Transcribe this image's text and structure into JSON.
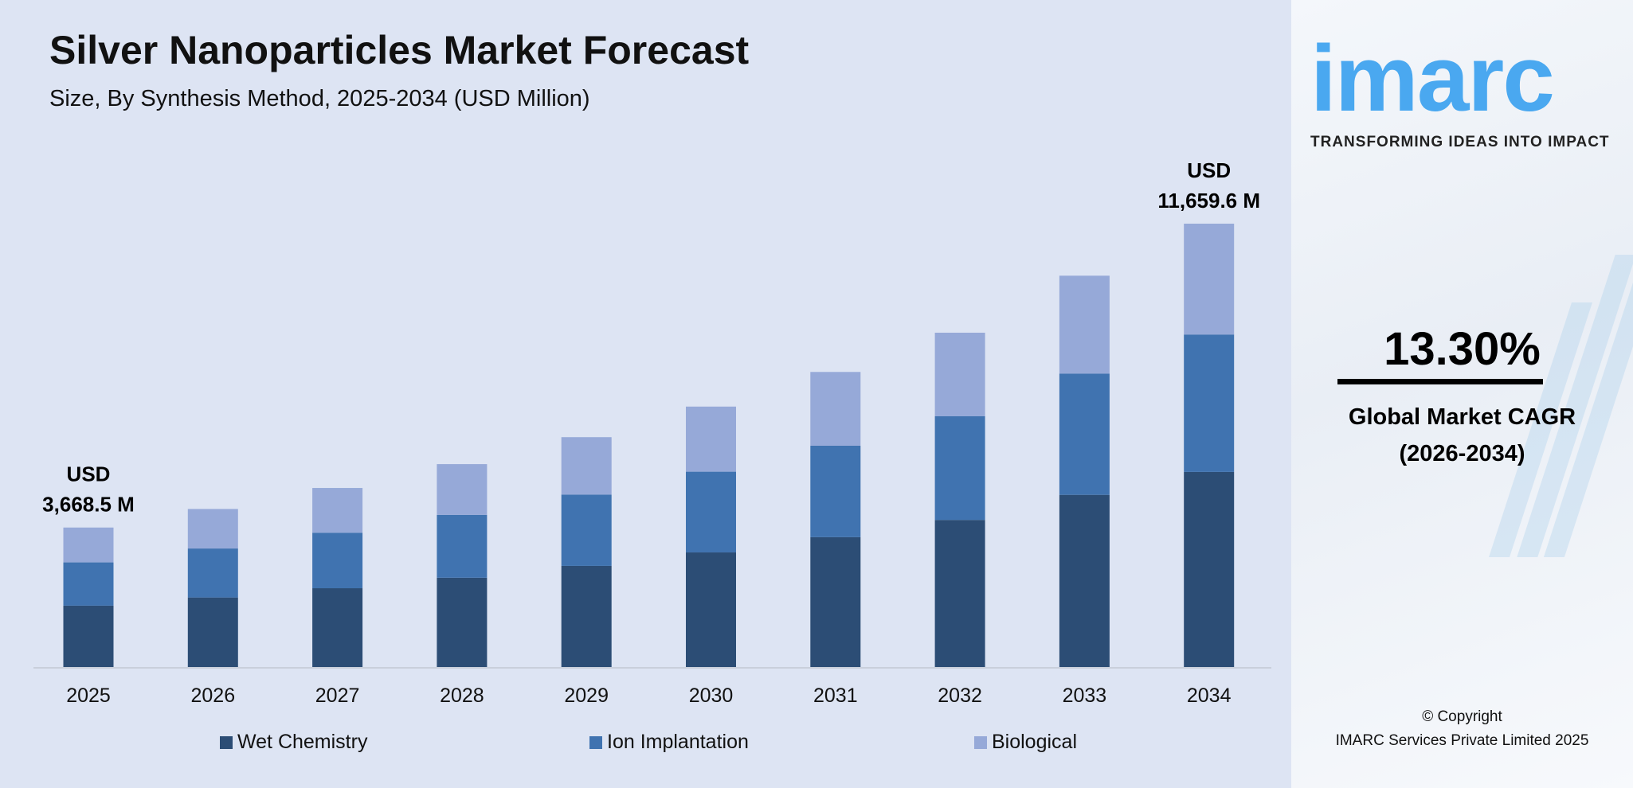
{
  "title": "Silver Nanoparticles Market Forecast",
  "subtitle": "Size, By Synthesis Method, 2025-2034 (USD Million)",
  "chart_data": {
    "type": "bar",
    "stacked": true,
    "categories": [
      "2025",
      "2026",
      "2027",
      "2028",
      "2029",
      "2030",
      "2031",
      "2032",
      "2033",
      "2034"
    ],
    "series": [
      {
        "name": "Wet Chemistry",
        "color": "#2c4d75",
        "values": [
          1614.1,
          1828.6,
          2072.0,
          2347.8,
          2659.8,
          3013.6,
          3414.4,
          3868.5,
          4528.0,
          5130.2
        ]
      },
      {
        "name": "Ion Implantation",
        "color": "#4073b0",
        "values": [
          1137.2,
          1288.4,
          1459.8,
          1654.2,
          1874.0,
          2123.2,
          2405.6,
          2725.5,
          3190.2,
          3614.5
        ]
      },
      {
        "name": "Biological",
        "color": "#96a9d8",
        "values": [
          917.2,
          1039.0,
          1177.2,
          1334.0,
          1511.2,
          1712.2,
          1940.0,
          2198.0,
          2572.8,
          2914.9
        ]
      }
    ],
    "annotations": [
      {
        "category": "2025",
        "line1": "USD",
        "line2": "3,668.5 M"
      },
      {
        "category": "2034",
        "line1": "USD",
        "line2": "11,659.6 M"
      }
    ],
    "xlabel": "",
    "ylabel": "",
    "grid": false,
    "legend": "bottom"
  },
  "sidebar": {
    "logo": "imarc",
    "tagline": "TRANSFORMING IDEAS INTO IMPACT",
    "cagr_value": "13.30%",
    "cagr_label": "Global Market CAGR",
    "cagr_period": "(2026-2034)",
    "copyright_line1": "© Copyright",
    "copyright_line2": "IMARC Services Private Limited 2025",
    "brand_color": "#4aa8f0"
  }
}
